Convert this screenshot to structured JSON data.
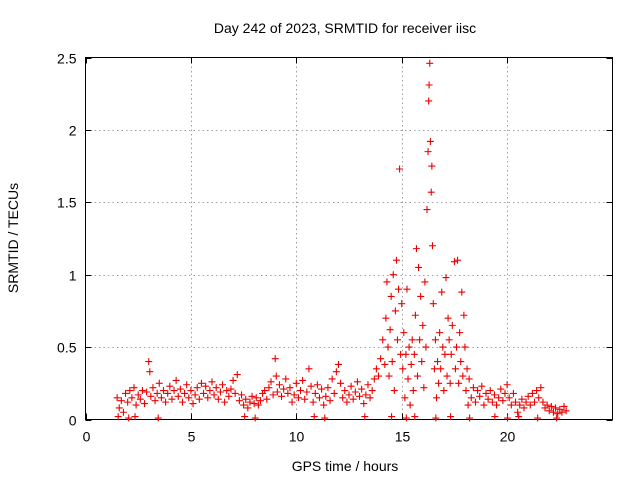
{
  "chart_data": {
    "type": "scatter",
    "title": "Day 242 of 2023, SRMTID for receiver iisc",
    "xlabel": "GPS time / hours",
    "ylabel": "SRMTID / TECUs",
    "xlim": [
      0,
      25
    ],
    "ylim": [
      0,
      2.5
    ],
    "xticks": [
      0,
      5,
      10,
      15,
      20
    ],
    "xtick_labels": [
      "0",
      "5",
      "10",
      "15",
      "20"
    ],
    "yticks": [
      0,
      0.5,
      1,
      1.5,
      2,
      2.5
    ],
    "ytick_labels": [
      "0",
      "0.5",
      "1",
      "1.5",
      "2",
      "2.5"
    ],
    "grid": true,
    "marker": "+",
    "color": "#ee0000",
    "series": [
      {
        "name": "SRMTID",
        "notes": "baseline roughly 0.1-0.25 from 1.5 h to 14 h and 19 h to 22.8 h; enhanced activity 14-18.5 h",
        "points": [
          [
            1.5,
            0.15
          ],
          [
            1.6,
            0.08
          ],
          [
            1.7,
            0.13
          ],
          [
            1.8,
            0.05
          ],
          [
            1.9,
            0.18
          ],
          [
            2.0,
            0.12
          ],
          [
            2.1,
            0.2
          ],
          [
            2.2,
            0.15
          ],
          [
            2.3,
            0.22
          ],
          [
            2.4,
            0.1
          ],
          [
            2.5,
            0.17
          ],
          [
            2.6,
            0.14
          ],
          [
            2.7,
            0.2
          ],
          [
            2.8,
            0.11
          ],
          [
            2.9,
            0.19
          ],
          [
            3.0,
            0.4
          ],
          [
            3.05,
            0.33
          ],
          [
            3.1,
            0.16
          ],
          [
            3.2,
            0.22
          ],
          [
            3.3,
            0.13
          ],
          [
            3.4,
            0.18
          ],
          [
            3.5,
            0.25
          ],
          [
            3.6,
            0.15
          ],
          [
            3.7,
            0.2
          ],
          [
            3.8,
            0.12
          ],
          [
            3.9,
            0.18
          ],
          [
            4.0,
            0.23
          ],
          [
            4.1,
            0.14
          ],
          [
            4.2,
            0.2
          ],
          [
            4.3,
            0.27
          ],
          [
            4.4,
            0.16
          ],
          [
            4.5,
            0.21
          ],
          [
            4.6,
            0.12
          ],
          [
            4.7,
            0.18
          ],
          [
            4.8,
            0.24
          ],
          [
            4.9,
            0.15
          ],
          [
            5.0,
            0.2
          ],
          [
            5.1,
            0.11
          ],
          [
            5.2,
            0.17
          ],
          [
            5.3,
            0.22
          ],
          [
            5.4,
            0.14
          ],
          [
            5.5,
            0.25
          ],
          [
            5.6,
            0.18
          ],
          [
            5.7,
            0.23
          ],
          [
            5.8,
            0.15
          ],
          [
            5.9,
            0.2
          ],
          [
            6.0,
            0.26
          ],
          [
            6.1,
            0.17
          ],
          [
            6.2,
            0.22
          ],
          [
            6.3,
            0.14
          ],
          [
            6.4,
            0.19
          ],
          [
            6.5,
            0.24
          ],
          [
            6.6,
            0.12
          ],
          [
            6.7,
            0.2
          ],
          [
            6.8,
            0.16
          ],
          [
            6.9,
            0.21
          ],
          [
            7.0,
            0.27
          ],
          [
            7.1,
            0.18
          ],
          [
            7.2,
            0.31
          ],
          [
            7.3,
            0.13
          ],
          [
            7.4,
            0.17
          ],
          [
            7.5,
            0.1
          ],
          [
            7.6,
            0.14
          ],
          [
            7.7,
            0.08
          ],
          [
            7.8,
            0.12
          ],
          [
            7.9,
            0.16
          ],
          [
            8.0,
            0.11
          ],
          [
            8.1,
            0.15
          ],
          [
            8.2,
            0.1
          ],
          [
            8.3,
            0.13
          ],
          [
            8.4,
            0.18
          ],
          [
            8.5,
            0.2
          ],
          [
            8.6,
            0.14
          ],
          [
            8.7,
            0.22
          ],
          [
            8.8,
            0.26
          ],
          [
            8.9,
            0.17
          ],
          [
            9.0,
            0.42
          ],
          [
            9.05,
            0.3
          ],
          [
            9.1,
            0.19
          ],
          [
            9.2,
            0.24
          ],
          [
            9.3,
            0.16
          ],
          [
            9.4,
            0.21
          ],
          [
            9.5,
            0.28
          ],
          [
            9.6,
            0.18
          ],
          [
            9.7,
            0.22
          ],
          [
            9.8,
            0.12
          ],
          [
            9.9,
            0.17
          ],
          [
            10.0,
            0.25
          ],
          [
            10.1,
            0.15
          ],
          [
            10.2,
            0.2
          ],
          [
            10.3,
            0.27
          ],
          [
            10.4,
            0.14
          ],
          [
            10.5,
            0.19
          ],
          [
            10.6,
            0.35
          ],
          [
            10.7,
            0.23
          ],
          [
            10.8,
            0.12
          ],
          [
            10.9,
            0.18
          ],
          [
            11.0,
            0.24
          ],
          [
            11.1,
            0.15
          ],
          [
            11.2,
            0.21
          ],
          [
            11.3,
            0.1
          ],
          [
            11.4,
            0.16
          ],
          [
            11.5,
            0.22
          ],
          [
            11.6,
            0.13
          ],
          [
            11.7,
            0.28
          ],
          [
            11.8,
            0.18
          ],
          [
            11.9,
            0.33
          ],
          [
            12.0,
            0.38
          ],
          [
            12.1,
            0.25
          ],
          [
            12.2,
            0.15
          ],
          [
            12.3,
            0.2
          ],
          [
            12.4,
            0.12
          ],
          [
            12.5,
            0.17
          ],
          [
            12.6,
            0.23
          ],
          [
            12.7,
            0.14
          ],
          [
            12.8,
            0.19
          ],
          [
            12.9,
            0.26
          ],
          [
            13.0,
            0.16
          ],
          [
            13.1,
            0.21
          ],
          [
            13.2,
            0.11
          ],
          [
            13.3,
            0.17
          ],
          [
            13.4,
            0.24
          ],
          [
            13.5,
            0.15
          ],
          [
            13.6,
            0.2
          ],
          [
            13.7,
            0.28
          ],
          [
            13.8,
            0.35
          ],
          [
            13.9,
            0.3
          ],
          [
            14.0,
            0.42
          ],
          [
            14.1,
            0.55
          ],
          [
            14.2,
            0.38
          ],
          [
            14.25,
            0.7
          ],
          [
            14.3,
            0.95
          ],
          [
            14.35,
            0.5
          ],
          [
            14.4,
            0.3
          ],
          [
            14.45,
            0.62
          ],
          [
            14.5,
            0.85
          ],
          [
            14.55,
            0.4
          ],
          [
            14.6,
            1.0
          ],
          [
            14.65,
            0.2
          ],
          [
            14.7,
            0.75
          ],
          [
            14.75,
            1.1
          ],
          [
            14.8,
            0.55
          ],
          [
            14.85,
            0.9
          ],
          [
            14.9,
            1.73
          ],
          [
            14.95,
            0.45
          ],
          [
            15.0,
            0.8
          ],
          [
            15.05,
            0.35
          ],
          [
            15.1,
            0.6
          ],
          [
            15.15,
            0.15
          ],
          [
            15.2,
            0.45
          ],
          [
            15.25,
            0.9
          ],
          [
            15.3,
            0.28
          ],
          [
            15.35,
            0.5
          ],
          [
            15.4,
            0.1
          ],
          [
            15.45,
            0.38
          ],
          [
            15.5,
            0.55
          ],
          [
            15.55,
            0.2
          ],
          [
            15.6,
            0.45
          ],
          [
            15.65,
            0.72
          ],
          [
            15.7,
            1.18
          ],
          [
            15.75,
            0.3
          ],
          [
            15.8,
            1.05
          ],
          [
            15.85,
            0.55
          ],
          [
            15.9,
            0.85
          ],
          [
            15.95,
            0.4
          ],
          [
            16.0,
            0.65
          ],
          [
            16.05,
            0.22
          ],
          [
            16.1,
            0.95
          ],
          [
            16.15,
            0.5
          ],
          [
            16.2,
            1.45
          ],
          [
            16.25,
            1.85
          ],
          [
            16.28,
            2.2
          ],
          [
            16.3,
            2.31
          ],
          [
            16.33,
            2.46
          ],
          [
            16.36,
            1.92
          ],
          [
            16.4,
            1.57
          ],
          [
            16.43,
            1.75
          ],
          [
            16.46,
            1.2
          ],
          [
            16.5,
            0.8
          ],
          [
            16.55,
            0.35
          ],
          [
            16.6,
            0.55
          ],
          [
            16.65,
            0.15
          ],
          [
            16.7,
            0.4
          ],
          [
            16.75,
            0.25
          ],
          [
            16.8,
            0.6
          ],
          [
            16.85,
            0.35
          ],
          [
            16.9,
            0.88
          ],
          [
            16.95,
            0.5
          ],
          [
            17.0,
            0.2
          ],
          [
            17.05,
            0.45
          ],
          [
            17.1,
            0.98
          ],
          [
            17.15,
            0.3
          ],
          [
            17.2,
            0.7
          ],
          [
            17.25,
            0.55
          ],
          [
            17.3,
            0.25
          ],
          [
            17.35,
            0.45
          ],
          [
            17.4,
            0.65
          ],
          [
            17.5,
            1.09
          ],
          [
            17.55,
            0.35
          ],
          [
            17.6,
            0.5
          ],
          [
            17.65,
            1.1
          ],
          [
            17.7,
            0.25
          ],
          [
            17.75,
            0.6
          ],
          [
            17.8,
            0.4
          ],
          [
            17.85,
            0.88
          ],
          [
            17.9,
            0.3
          ],
          [
            17.95,
            0.72
          ],
          [
            18.0,
            0.5
          ],
          [
            18.05,
            0.2
          ],
          [
            18.1,
            0.35
          ],
          [
            18.15,
            0.1
          ],
          [
            18.2,
            0.28
          ],
          [
            18.3,
            0.15
          ],
          [
            18.4,
            0.22
          ],
          [
            18.5,
            0.12
          ],
          [
            18.6,
            0.2
          ],
          [
            18.7,
            0.16
          ],
          [
            18.8,
            0.23
          ],
          [
            18.9,
            0.1
          ],
          [
            19.0,
            0.18
          ],
          [
            19.1,
            0.14
          ],
          [
            19.2,
            0.2
          ],
          [
            19.3,
            0.12
          ],
          [
            19.4,
            0.17
          ],
          [
            19.5,
            0.1
          ],
          [
            19.6,
            0.15
          ],
          [
            19.7,
            0.21
          ],
          [
            19.8,
            0.13
          ],
          [
            19.9,
            0.18
          ],
          [
            20.0,
            0.24
          ],
          [
            20.1,
            0.15
          ],
          [
            20.2,
            0.1
          ],
          [
            20.3,
            0.18
          ],
          [
            20.4,
            0.12
          ],
          [
            20.5,
            0.05
          ],
          [
            20.6,
            0.1
          ],
          [
            20.7,
            0.14
          ],
          [
            20.8,
            0.08
          ],
          [
            20.9,
            0.12
          ],
          [
            21.0,
            0.16
          ],
          [
            21.1,
            0.1
          ],
          [
            21.2,
            0.18
          ],
          [
            21.3,
            0.12
          ],
          [
            21.4,
            0.2
          ],
          [
            21.5,
            0.15
          ],
          [
            21.6,
            0.22
          ],
          [
            21.7,
            0.12
          ],
          [
            21.8,
            0.08
          ],
          [
            21.9,
            0.1
          ],
          [
            22.0,
            0.06
          ],
          [
            22.1,
            0.09
          ],
          [
            22.2,
            0.05
          ],
          [
            22.3,
            0.08
          ],
          [
            22.4,
            0.04
          ],
          [
            22.5,
            0.07
          ],
          [
            22.6,
            0.05
          ],
          [
            22.7,
            0.09
          ],
          [
            22.8,
            0.06
          ],
          [
            1.55,
            0.02
          ],
          [
            2.05,
            0.01
          ],
          [
            2.35,
            0.02
          ],
          [
            3.45,
            0.01
          ],
          [
            7.55,
            0.02
          ],
          [
            8.05,
            0.01
          ],
          [
            10.85,
            0.02
          ],
          [
            11.35,
            0.01
          ],
          [
            13.25,
            0.02
          ],
          [
            14.52,
            0.02
          ],
          [
            15.22,
            0.01
          ],
          [
            15.62,
            0.02
          ],
          [
            16.62,
            0.01
          ],
          [
            17.32,
            0.02
          ],
          [
            18.22,
            0.01
          ],
          [
            19.42,
            0.02
          ],
          [
            20.02,
            0.01
          ],
          [
            20.55,
            0.02
          ],
          [
            21.45,
            0.01
          ],
          [
            22.35,
            0.01
          ]
        ]
      }
    ]
  }
}
